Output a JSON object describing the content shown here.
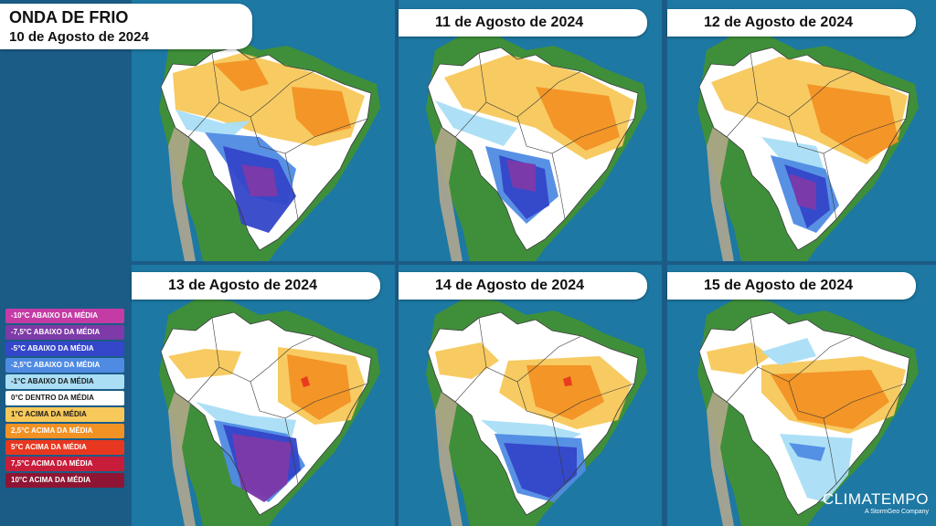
{
  "header": {
    "title": "ONDA DE FRIO",
    "date": "10 de Agosto de 2024"
  },
  "panels": [
    {
      "id": "p0",
      "date": "10 de Agosto de 2024",
      "pattern": 0
    },
    {
      "id": "p1",
      "date": "11 de Agosto de 2024",
      "pattern": 1
    },
    {
      "id": "p2",
      "date": "12 de Agosto de 2024",
      "pattern": 2
    },
    {
      "id": "p3",
      "date": "13 de Agosto de 2024",
      "pattern": 3
    },
    {
      "id": "p4",
      "date": "14 de Agosto de 2024",
      "pattern": 4
    },
    {
      "id": "p5",
      "date": "15 de Agosto de 2024",
      "pattern": 5
    }
  ],
  "legend": {
    "items": [
      {
        "label": "-10°C ABAIXO DA MÉDIA",
        "color": "#c43ba6",
        "text_color": "#ffffff"
      },
      {
        "label": "-7,5°C ABAIXO DA MÉDIA",
        "color": "#7e3aa8",
        "text_color": "#ffffff"
      },
      {
        "label": "-5°C ABAIXO DA MÉDIA",
        "color": "#3446c9",
        "text_color": "#ffffff"
      },
      {
        "label": "-2,5°C ABAIXO DA MÉDIA",
        "color": "#4f8be3",
        "text_color": "#ffffff"
      },
      {
        "label": "-1°C ABAIXO DA MÉDIA",
        "color": "#a9def5",
        "text_color": "#1a1a1a"
      },
      {
        "label": "0°C DENTRO DA MÉDIA",
        "color": "#ffffff",
        "text_color": "#1a1a1a"
      },
      {
        "label": "1°C ACIMA DA MÉDIA",
        "color": "#f7c85a",
        "text_color": "#1a1a1a"
      },
      {
        "label": "2,5°C ACIMA DA MÉDIA",
        "color": "#f29124",
        "text_color": "#ffffff"
      },
      {
        "label": "5°C ACIMA DA MÉDIA",
        "color": "#e8371f",
        "text_color": "#ffffff"
      },
      {
        "label": "7,5°C ACIMA DA MÉDIA",
        "color": "#c81d3a",
        "text_color": "#ffffff"
      },
      {
        "label": "10°C ACIMA DA MÉDIA",
        "color": "#8e1533",
        "text_color": "#ffffff"
      }
    ]
  },
  "brand": {
    "name": "CLIMATEMPO",
    "tagline": "A StormGeo Company"
  },
  "colors": {
    "ocean": "#1d78a3",
    "land": "#3f8f3a",
    "andes": "#b8a98f",
    "white": "#ffffff",
    "light_blue": "#a9def5",
    "mid_blue": "#4f8be3",
    "blue": "#3446c9",
    "purple": "#7e3aa8",
    "yellow": "#f7c85a",
    "orange": "#f29124",
    "red": "#e8371f",
    "border": "#3a3a3a"
  }
}
